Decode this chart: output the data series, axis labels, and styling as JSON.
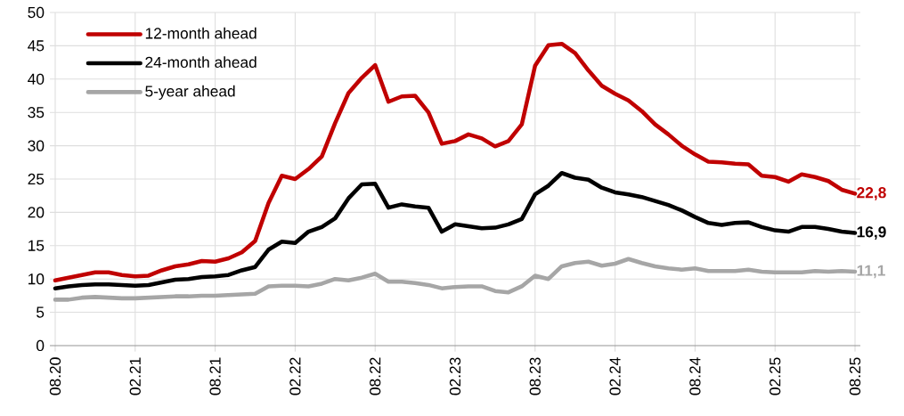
{
  "chart_data": {
    "type": "line",
    "categories": [
      "08.20",
      null,
      null,
      null,
      null,
      null,
      "02.21",
      null,
      null,
      null,
      null,
      null,
      "08.21",
      null,
      null,
      null,
      null,
      null,
      "02.22",
      null,
      null,
      null,
      null,
      null,
      "08.22",
      null,
      null,
      null,
      null,
      null,
      "02.23",
      null,
      null,
      null,
      null,
      null,
      "08.23",
      null,
      null,
      null,
      null,
      null,
      "02.24",
      null,
      null,
      null,
      null,
      null,
      "08.24",
      null,
      null,
      null,
      null,
      null,
      "02.25",
      null,
      null,
      null,
      null,
      null,
      "08.25"
    ],
    "series": [
      {
        "name": "12-month ahead",
        "color": "#c00000",
        "values": [
          9.8,
          10.2,
          10.6,
          11.0,
          11.0,
          10.6,
          10.4,
          10.5,
          11.3,
          11.9,
          12.2,
          12.7,
          12.6,
          13.1,
          14.0,
          15.7,
          21.4,
          25.5,
          25.0,
          26.5,
          28.4,
          33.4,
          37.9,
          40.2,
          42.1,
          36.6,
          37.4,
          37.5,
          35.0,
          30.3,
          30.7,
          31.7,
          31.1,
          29.9,
          30.7,
          33.2,
          42.0,
          45.1,
          45.3,
          43.9,
          41.3,
          39.0,
          37.8,
          36.8,
          35.2,
          33.2,
          31.7,
          30.0,
          28.7,
          27.6,
          27.5,
          27.3,
          27.2,
          25.5,
          25.3,
          24.6,
          25.7,
          25.3,
          24.7,
          23.4,
          22.8
        ]
      },
      {
        "name": "24-month ahead",
        "color": "#000000",
        "values": [
          8.6,
          8.9,
          9.1,
          9.2,
          9.2,
          9.1,
          9.0,
          9.1,
          9.5,
          9.9,
          10.0,
          10.3,
          10.4,
          10.6,
          11.3,
          11.8,
          14.4,
          15.6,
          15.4,
          17.1,
          17.8,
          19.1,
          22.1,
          24.2,
          24.3,
          20.7,
          21.2,
          20.9,
          20.7,
          17.1,
          18.2,
          17.9,
          17.6,
          17.7,
          18.2,
          19.0,
          22.7,
          24.0,
          25.9,
          25.2,
          24.9,
          23.7,
          23.0,
          22.7,
          22.3,
          21.7,
          21.1,
          20.3,
          19.3,
          18.4,
          18.1,
          18.4,
          18.5,
          17.8,
          17.3,
          17.1,
          17.8,
          17.8,
          17.5,
          17.1,
          16.9
        ]
      },
      {
        "name": "5-year ahead",
        "color": "#a6a6a6",
        "values": [
          6.9,
          6.9,
          7.2,
          7.3,
          7.2,
          7.1,
          7.1,
          7.2,
          7.3,
          7.4,
          7.4,
          7.5,
          7.5,
          7.6,
          7.7,
          7.8,
          8.9,
          9.0,
          9.0,
          8.9,
          9.3,
          10.0,
          9.8,
          10.2,
          10.8,
          9.6,
          9.6,
          9.4,
          9.1,
          8.6,
          8.8,
          8.9,
          8.9,
          8.2,
          8.0,
          8.9,
          10.5,
          10.0,
          11.9,
          12.4,
          12.6,
          12.0,
          12.3,
          13.0,
          12.4,
          11.9,
          11.6,
          11.4,
          11.6,
          11.2,
          11.2,
          11.2,
          11.4,
          11.1,
          11.0,
          11.0,
          11.0,
          11.2,
          11.1,
          11.2,
          11.1
        ]
      }
    ],
    "ylim": [
      0,
      50
    ],
    "yticks": [
      0,
      5,
      10,
      15,
      20,
      25,
      30,
      35,
      40,
      45,
      50
    ],
    "grid": true,
    "legend": "top left",
    "line_style": "solid",
    "marker": "none",
    "annotations": [
      {
        "text": "22,8",
        "x": "08.25",
        "y": 22.8
      },
      {
        "text": "16,9",
        "x": "08.25",
        "y": 16.9
      },
      {
        "text": "11,1",
        "x": "08.25",
        "y": 11.1
      }
    ]
  }
}
